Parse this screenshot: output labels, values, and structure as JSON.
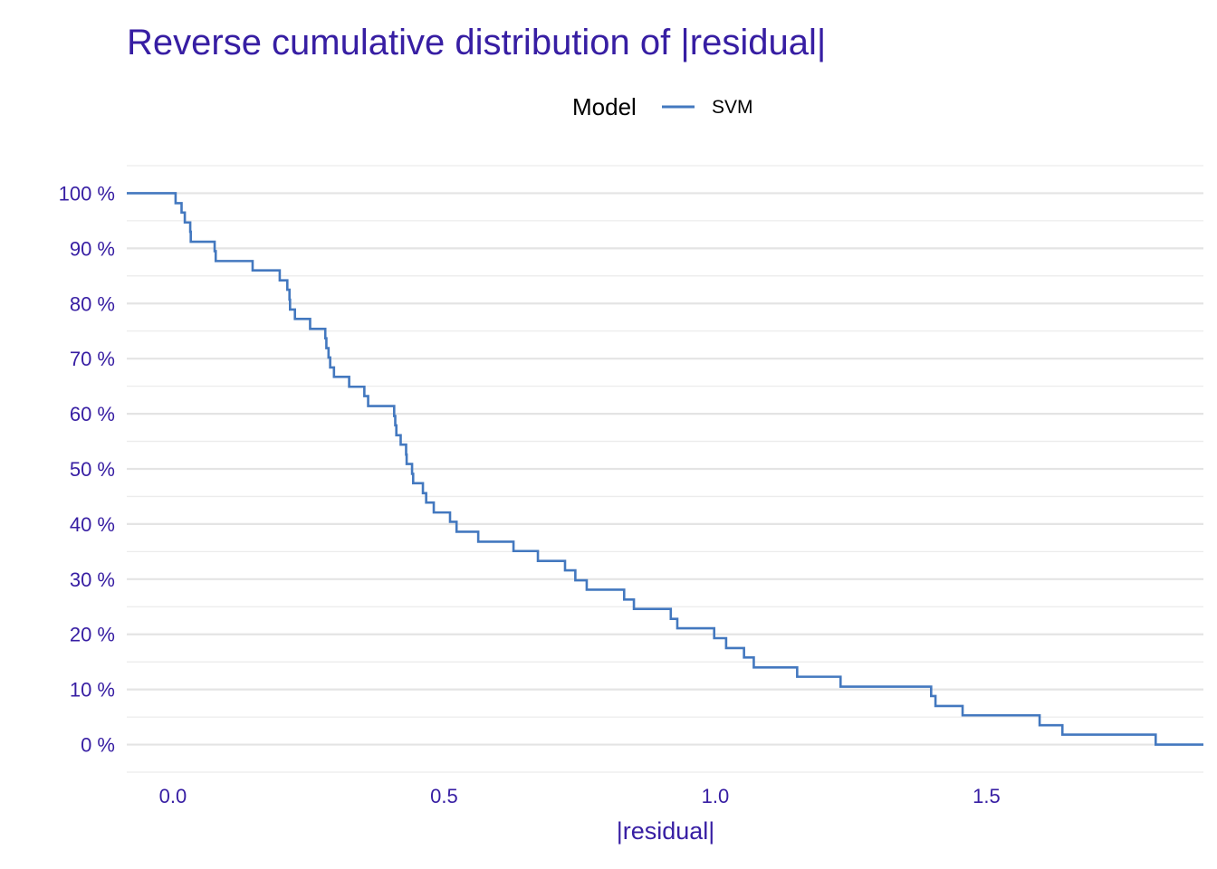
{
  "chart_data": {
    "type": "line",
    "title": "Reverse cumulative distribution of |residual|",
    "xlabel": "|residual|",
    "ylabel": "",
    "xlim": [
      -0.085,
      1.9
    ],
    "ylim": [
      -0.05,
      1.05
    ],
    "x_ticks": [
      0.0,
      0.5,
      1.0,
      1.5
    ],
    "x_tick_labels": [
      "0.0",
      "0.5",
      "1.0",
      "1.5"
    ],
    "y_ticks": [
      0,
      0.1,
      0.2,
      0.3,
      0.4,
      0.5,
      0.6,
      0.7,
      0.8,
      0.9,
      1.0
    ],
    "y_tick_labels": [
      "0 %",
      "10 %",
      "20 %",
      "30 %",
      "40 %",
      "50 %",
      "60 %",
      "70 %",
      "80 %",
      "90 %",
      "100 %"
    ],
    "grid": true,
    "legend": {
      "title": "Model",
      "position": "top"
    },
    "series": [
      {
        "name": "SVM",
        "color": "#4378bf",
        "step": true,
        "points": [
          [
            -0.085,
            1.0
          ],
          [
            0.005,
            0.982
          ],
          [
            0.016,
            0.965
          ],
          [
            0.022,
            0.947
          ],
          [
            0.032,
            0.93
          ],
          [
            0.033,
            0.912
          ],
          [
            0.077,
            0.895
          ],
          [
            0.079,
            0.877
          ],
          [
            0.147,
            0.86
          ],
          [
            0.197,
            0.842
          ],
          [
            0.211,
            0.825
          ],
          [
            0.215,
            0.807
          ],
          [
            0.216,
            0.789
          ],
          [
            0.225,
            0.772
          ],
          [
            0.253,
            0.754
          ],
          [
            0.281,
            0.737
          ],
          [
            0.283,
            0.719
          ],
          [
            0.287,
            0.702
          ],
          [
            0.29,
            0.684
          ],
          [
            0.297,
            0.667
          ],
          [
            0.325,
            0.649
          ],
          [
            0.353,
            0.632
          ],
          [
            0.36,
            0.614
          ],
          [
            0.408,
            0.596
          ],
          [
            0.41,
            0.579
          ],
          [
            0.412,
            0.561
          ],
          [
            0.42,
            0.544
          ],
          [
            0.43,
            0.526
          ],
          [
            0.431,
            0.509
          ],
          [
            0.441,
            0.491
          ],
          [
            0.443,
            0.474
          ],
          [
            0.461,
            0.456
          ],
          [
            0.467,
            0.439
          ],
          [
            0.481,
            0.421
          ],
          [
            0.511,
            0.404
          ],
          [
            0.523,
            0.386
          ],
          [
            0.563,
            0.368
          ],
          [
            0.628,
            0.351
          ],
          [
            0.673,
            0.333
          ],
          [
            0.723,
            0.316
          ],
          [
            0.742,
            0.298
          ],
          [
            0.763,
            0.281
          ],
          [
            0.832,
            0.263
          ],
          [
            0.85,
            0.246
          ],
          [
            0.918,
            0.228
          ],
          [
            0.93,
            0.211
          ],
          [
            0.998,
            0.193
          ],
          [
            1.02,
            0.175
          ],
          [
            1.053,
            0.158
          ],
          [
            1.071,
            0.14
          ],
          [
            1.151,
            0.123
          ],
          [
            1.231,
            0.105
          ],
          [
            1.398,
            0.088
          ],
          [
            1.406,
            0.07
          ],
          [
            1.456,
            0.053
          ],
          [
            1.598,
            0.035
          ],
          [
            1.64,
            0.018
          ],
          [
            1.812,
            0.0
          ],
          [
            1.9,
            0.0
          ]
        ]
      }
    ]
  }
}
